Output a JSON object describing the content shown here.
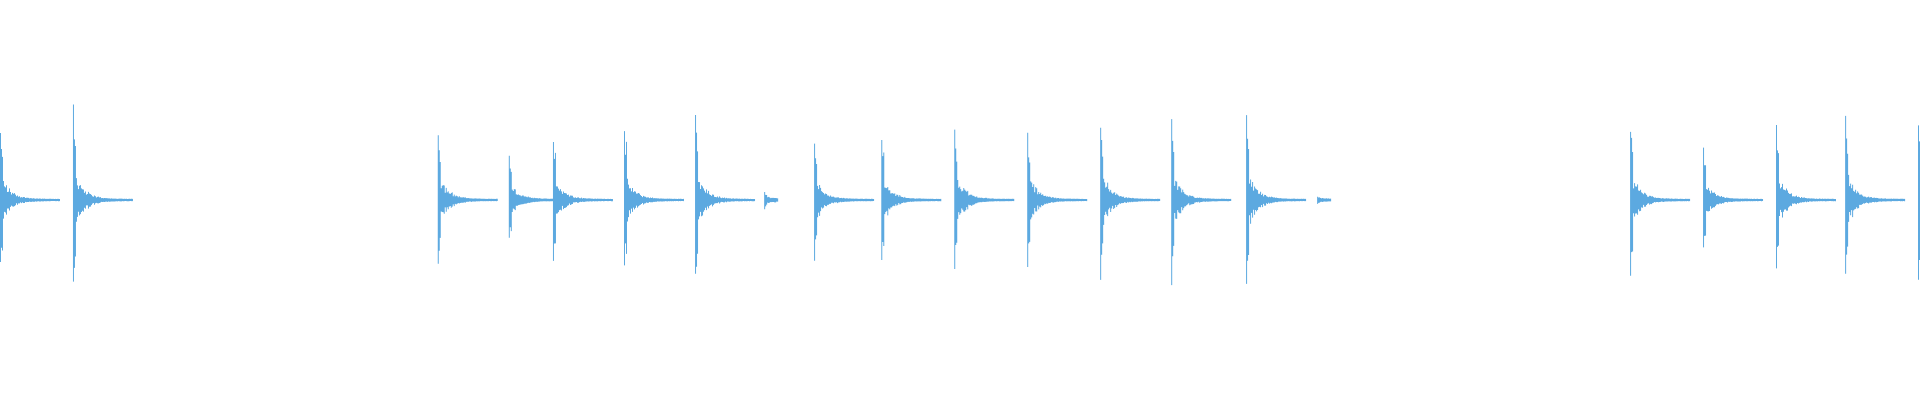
{
  "chart_data": {
    "type": "waveform",
    "title": "",
    "xlabel": "",
    "ylabel": "",
    "ylim": [
      -1,
      1
    ],
    "grid": false,
    "legend": "none",
    "color": "#5ca9e0",
    "background": "#ffffff",
    "transients": [
      {
        "onset": 0.0,
        "amplitude": 0.36
      },
      {
        "onset": 0.038,
        "amplitude": 0.48
      },
      {
        "onset": 0.228,
        "amplitude": 0.39
      },
      {
        "onset": 0.265,
        "amplitude": 0.23
      },
      {
        "onset": 0.288,
        "amplitude": 0.36
      },
      {
        "onset": 0.325,
        "amplitude": 0.37
      },
      {
        "onset": 0.362,
        "amplitude": 0.43
      },
      {
        "onset": 0.398,
        "amplitude": 0.05
      },
      {
        "onset": 0.424,
        "amplitude": 0.31
      },
      {
        "onset": 0.459,
        "amplitude": 0.35
      },
      {
        "onset": 0.497,
        "amplitude": 0.42
      },
      {
        "onset": 0.535,
        "amplitude": 0.37
      },
      {
        "onset": 0.573,
        "amplitude": 0.44
      },
      {
        "onset": 0.61,
        "amplitude": 0.43
      },
      {
        "onset": 0.649,
        "amplitude": 0.44
      },
      {
        "onset": 0.686,
        "amplitude": 0.02
      },
      {
        "onset": 0.849,
        "amplitude": 0.4
      },
      {
        "onset": 0.887,
        "amplitude": 0.29
      },
      {
        "onset": 0.925,
        "amplitude": 0.4
      },
      {
        "onset": 0.961,
        "amplitude": 0.43
      },
      {
        "onset": 0.999,
        "amplitude": 0.46
      }
    ]
  }
}
